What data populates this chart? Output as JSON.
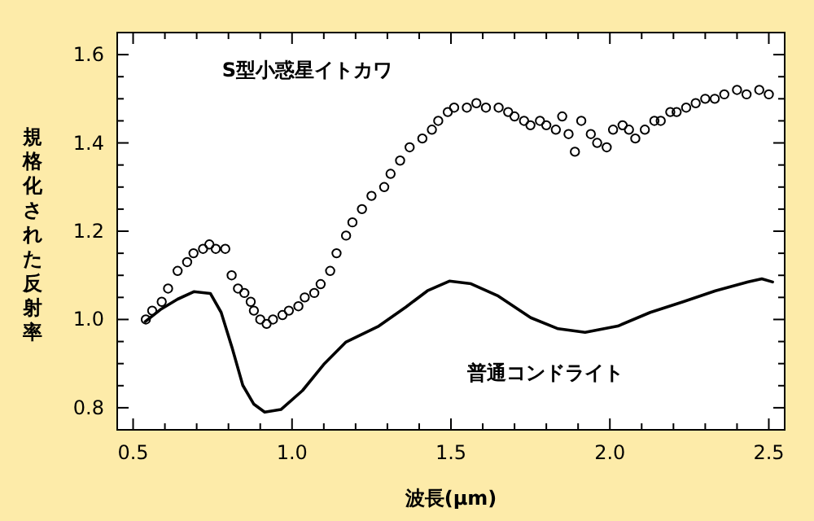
{
  "chart_data": {
    "type": "line",
    "xlabel": "波長(μm)",
    "ylabel": "規格化された反射率",
    "xlim": [
      0.45,
      2.55
    ],
    "ylim": [
      0.75,
      1.65
    ],
    "xticks": [
      {
        "value": 0.5,
        "label": "0.5"
      },
      {
        "value": 1.0,
        "label": "1.0"
      },
      {
        "value": 1.5,
        "label": "1.5"
      },
      {
        "value": 2.0,
        "label": "2.0"
      },
      {
        "value": 2.5,
        "label": "2.5"
      }
    ],
    "yticks": [
      {
        "value": 0.8,
        "label": "0.8"
      },
      {
        "value": 1.0,
        "label": "1.0"
      },
      {
        "value": 1.2,
        "label": "1.2"
      },
      {
        "value": 1.4,
        "label": "1.4"
      },
      {
        "value": 1.6,
        "label": "1.6"
      }
    ],
    "grid": false,
    "legend": "top left",
    "series": [
      {
        "name": "S型小惑星イトカワ",
        "type": "scatter",
        "marker": "circle",
        "color": "#000000",
        "x": [
          0.54,
          0.56,
          0.59,
          0.61,
          0.64,
          0.67,
          0.69,
          0.72,
          0.74,
          0.76,
          0.79,
          0.81,
          0.83,
          0.85,
          0.87,
          0.88,
          0.9,
          0.92,
          0.94,
          0.97,
          0.99,
          1.02,
          1.04,
          1.07,
          1.09,
          1.12,
          1.14,
          1.17,
          1.19,
          1.22,
          1.25,
          1.29,
          1.31,
          1.34,
          1.37,
          1.41,
          1.44,
          1.46,
          1.49,
          1.51,
          1.55,
          1.58,
          1.61,
          1.65,
          1.68,
          1.7,
          1.73,
          1.75,
          1.78,
          1.8,
          1.83,
          1.85,
          1.87,
          1.89,
          1.91,
          1.94,
          1.96,
          1.99,
          2.01,
          2.04,
          2.06,
          2.08,
          2.11,
          2.14,
          2.16,
          2.19,
          2.21,
          2.24,
          2.27,
          2.3,
          2.33,
          2.36,
          2.4,
          2.43,
          2.47,
          2.5
        ],
        "values": [
          1.0,
          1.02,
          1.04,
          1.07,
          1.11,
          1.13,
          1.15,
          1.16,
          1.17,
          1.16,
          1.16,
          1.1,
          1.07,
          1.06,
          1.04,
          1.02,
          1.0,
          0.99,
          1.0,
          1.01,
          1.02,
          1.03,
          1.05,
          1.06,
          1.08,
          1.11,
          1.15,
          1.19,
          1.22,
          1.25,
          1.28,
          1.3,
          1.33,
          1.36,
          1.39,
          1.41,
          1.43,
          1.45,
          1.47,
          1.48,
          1.48,
          1.49,
          1.48,
          1.48,
          1.47,
          1.46,
          1.45,
          1.44,
          1.45,
          1.44,
          1.43,
          1.46,
          1.42,
          1.38,
          1.45,
          1.42,
          1.4,
          1.39,
          1.43,
          1.44,
          1.43,
          1.41,
          1.43,
          1.45,
          1.45,
          1.47,
          1.47,
          1.48,
          1.49,
          1.5,
          1.5,
          1.51,
          1.52,
          1.51,
          1.52,
          1.51
        ]
      },
      {
        "name": "普通コンドライト",
        "line_style": "solid",
        "color": "#000000",
        "x": [
          0.538,
          0.589,
          0.64,
          0.691,
          0.743,
          0.777,
          0.811,
          0.845,
          0.88,
          0.914,
          0.965,
          1.033,
          1.102,
          1.17,
          1.273,
          1.358,
          1.426,
          1.495,
          1.563,
          1.649,
          1.751,
          1.837,
          1.922,
          2.025,
          2.127,
          2.23,
          2.332,
          2.435,
          2.478,
          2.512
        ],
        "values": [
          0.995,
          1.024,
          1.046,
          1.063,
          1.059,
          1.016,
          0.937,
          0.851,
          0.808,
          0.79,
          0.796,
          0.839,
          0.9,
          0.949,
          0.985,
          1.028,
          1.065,
          1.087,
          1.081,
          1.053,
          1.004,
          0.979,
          0.971,
          0.985,
          1.016,
          1.04,
          1.065,
          1.085,
          1.092,
          1.085
        ]
      }
    ]
  }
}
